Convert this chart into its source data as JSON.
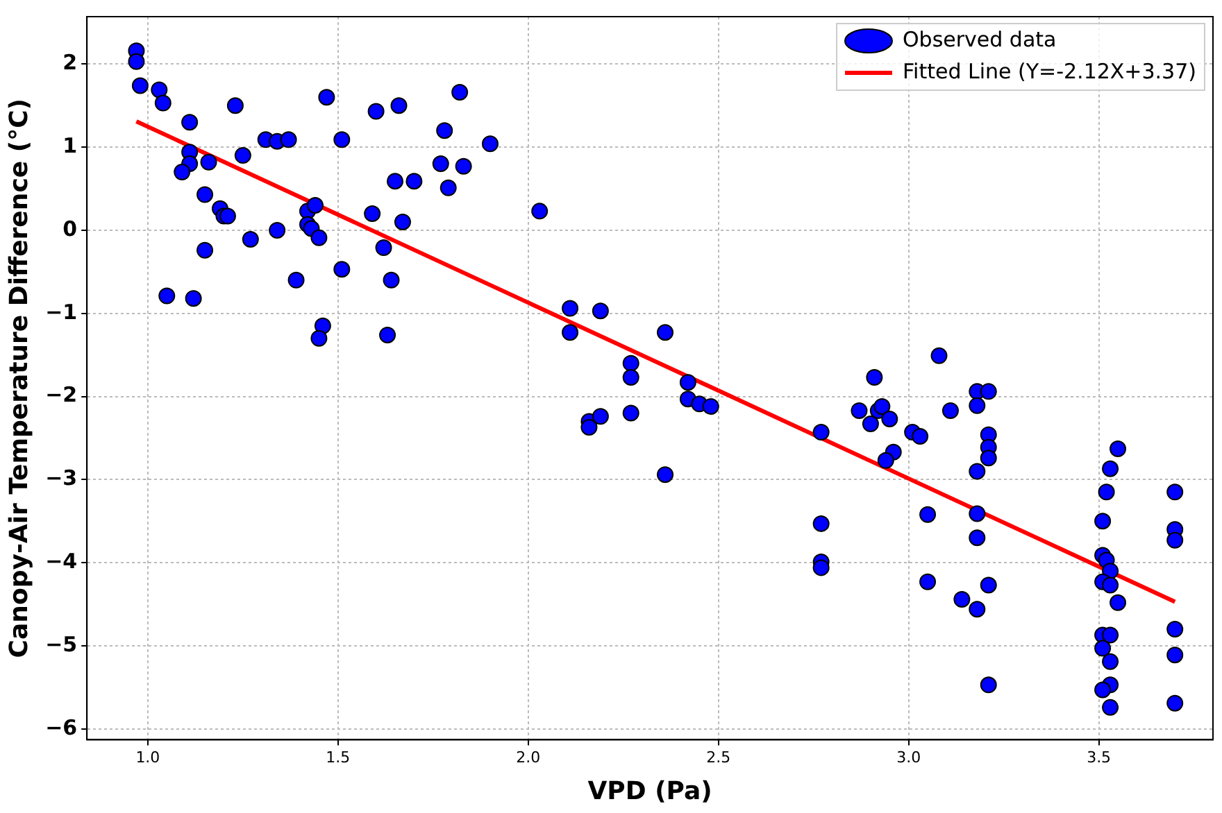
{
  "chart_data": {
    "type": "scatter",
    "xlabel": "VPD (Pa)",
    "ylabel": "Canopy-Air Temperature Difference (°C)",
    "xlim": [
      0.84,
      3.8
    ],
    "ylim": [
      -6.13,
      2.57
    ],
    "xticks": [
      {
        "value": 1,
        "label": "1.0"
      },
      {
        "value": 1.5,
        "label": "1.5"
      },
      {
        "value": 2,
        "label": "2.0"
      },
      {
        "value": 2.5,
        "label": "2.5"
      },
      {
        "value": 3,
        "label": "3.0"
      },
      {
        "value": 3.5,
        "label": "3.5"
      }
    ],
    "yticks": [
      {
        "value": -6,
        "label": "−6"
      },
      {
        "value": -5,
        "label": "−5"
      },
      {
        "value": -4,
        "label": "−4"
      },
      {
        "value": -3,
        "label": "−3"
      },
      {
        "value": -2,
        "label": "−2"
      },
      {
        "value": -1,
        "label": "−1"
      },
      0,
      1,
      2
    ],
    "grid": true,
    "legend": "top right",
    "marker": "circle",
    "series": [
      {
        "name": "Observed data",
        "type": "scatter",
        "color": "#0000ff",
        "x": [
          0.97,
          0.97,
          0.98,
          1.03,
          1.04,
          1.11,
          1.23,
          1.11,
          1.11,
          1.09,
          1.16,
          1.25,
          1.15,
          1.19,
          1.2,
          1.21,
          1.15,
          1.27,
          1.05,
          1.12,
          1.31,
          1.34,
          1.37,
          1.47,
          1.51,
          1.34,
          1.39,
          1.42,
          1.44,
          1.42,
          1.43,
          1.45,
          1.51,
          1.46,
          1.45,
          1.6,
          1.66,
          1.59,
          1.65,
          1.7,
          1.62,
          1.67,
          1.64,
          1.63,
          1.77,
          1.79,
          1.78,
          1.82,
          1.83,
          1.9,
          2.03,
          2.11,
          2.19,
          2.11,
          2.27,
          2.27,
          2.36,
          2.16,
          2.16,
          2.19,
          2.27,
          2.42,
          2.42,
          2.45,
          2.48,
          2.36,
          2.77,
          2.77,
          2.77,
          2.77,
          2.87,
          2.9,
          2.91,
          2.92,
          2.93,
          2.95,
          2.96,
          2.94,
          3.01,
          3.03,
          3.05,
          3.05,
          3.08,
          3.11,
          3.14,
          3.18,
          3.21,
          3.18,
          3.21,
          3.21,
          3.21,
          3.18,
          3.18,
          3.18,
          3.21,
          3.18,
          3.21,
          3.55,
          3.53,
          3.52,
          3.51,
          3.51,
          3.52,
          3.53,
          3.51,
          3.53,
          3.55,
          3.51,
          3.53,
          3.51,
          3.53,
          3.53,
          3.51,
          3.53,
          3.7,
          3.7,
          3.7,
          3.7,
          3.7,
          3.7
        ],
        "values": [
          2.16,
          2.03,
          1.74,
          1.69,
          1.53,
          1.3,
          1.5,
          0.94,
          0.8,
          0.7,
          0.82,
          0.9,
          0.43,
          0.26,
          0.17,
          0.17,
          -0.24,
          -0.11,
          -0.79,
          -0.82,
          1.09,
          1.07,
          1.09,
          1.6,
          1.09,
          0,
          -0.6,
          0.23,
          0.3,
          0.07,
          0.02,
          -0.09,
          -0.47,
          -1.15,
          -1.3,
          1.43,
          1.5,
          0.2,
          0.59,
          0.59,
          -0.21,
          0.1,
          -0.6,
          -1.26,
          0.8,
          0.51,
          1.2,
          1.66,
          0.77,
          1.04,
          0.23,
          -0.94,
          -0.97,
          -1.23,
          -1.6,
          -1.77,
          -1.23,
          -2.3,
          -2.37,
          -2.24,
          -2.2,
          -1.83,
          -2.03,
          -2.09,
          -2.12,
          -2.94,
          -2.43,
          -3.53,
          -3.99,
          -4.06,
          -2.17,
          -2.33,
          -1.77,
          -2.17,
          -2.12,
          -2.27,
          -2.67,
          -2.77,
          -2.43,
          -2.48,
          -3.42,
          -4.23,
          -1.51,
          -2.17,
          -4.44,
          -1.94,
          -1.94,
          -2.11,
          -2.46,
          -2.61,
          -2.74,
          -2.9,
          -3.41,
          -3.7,
          -4.27,
          -4.56,
          -5.47,
          -2.63,
          -2.87,
          -3.15,
          -3.5,
          -3.91,
          -3.97,
          -4.1,
          -4.23,
          -4.27,
          -4.48,
          -4.87,
          -4.87,
          -5.03,
          -5.19,
          -5.47,
          -5.53,
          -5.74,
          -3.15,
          -3.6,
          -3.73,
          -4.8,
          -5.11,
          -5.69
        ]
      },
      {
        "name": "Fitted Line (Y=-2.12X+3.37)",
        "type": "line",
        "marker": "none",
        "color": "#ff0000",
        "x": [
          0.97,
          3.7
        ],
        "values": [
          1.31,
          -4.47
        ]
      }
    ]
  }
}
